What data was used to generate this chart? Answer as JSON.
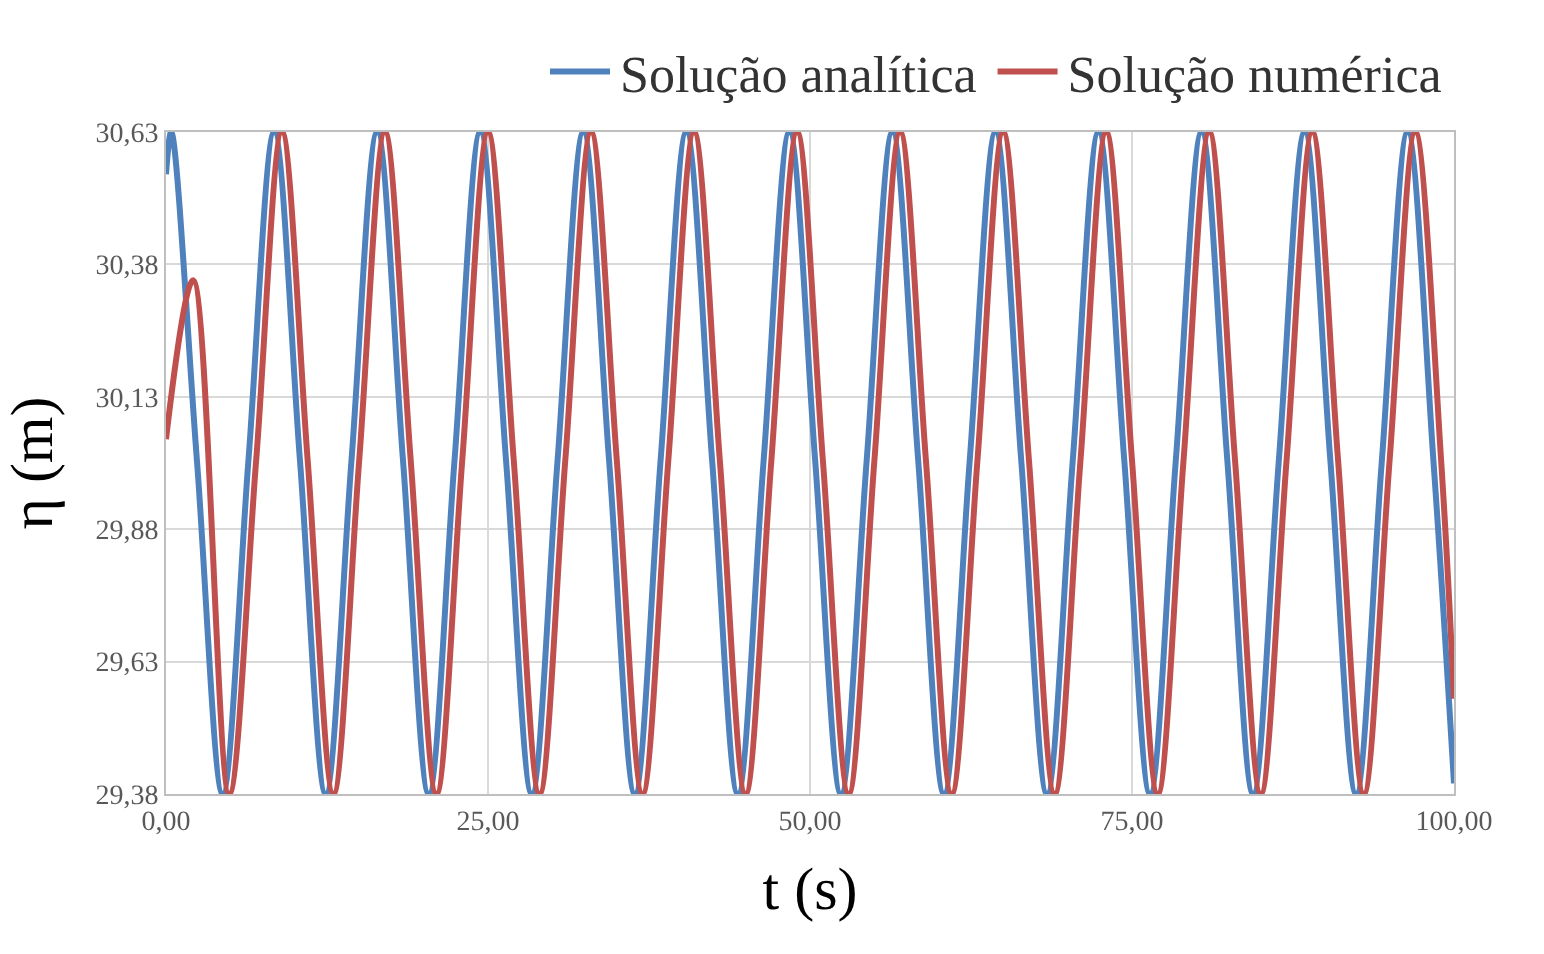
{
  "chart_data": {
    "type": "line",
    "xlabel": "t (s)",
    "ylabel": "η (m)",
    "legend": "top",
    "grid": true,
    "line_style": "solid",
    "xlim": [
      0,
      100
    ],
    "ylim": [
      29.38,
      30.63
    ],
    "xticks": [
      {
        "value": 0,
        "label": "0,00"
      },
      {
        "value": 25,
        "label": "25,00"
      },
      {
        "value": 50,
        "label": "50,00"
      },
      {
        "value": 75,
        "label": "75,00"
      },
      {
        "value": 100,
        "label": "100,00"
      }
    ],
    "yticks": [
      {
        "value": 29.38,
        "label": "29,38"
      },
      {
        "value": 29.63,
        "label": "29,63"
      },
      {
        "value": 29.88,
        "label": "29,88"
      },
      {
        "value": 30.13,
        "label": "30,13"
      },
      {
        "value": 30.38,
        "label": "30,38"
      },
      {
        "value": 30.63,
        "label": "30,63"
      }
    ],
    "series": [
      {
        "name": "Solução analítica",
        "color": "#4f81bd",
        "x": [
          0,
          0.4,
          2.4,
          4.4,
          6.4,
          8.4,
          10.4,
          12.4,
          14.4,
          16.4,
          18.4,
          20.4,
          22.4,
          24.4,
          26.4,
          28.4,
          30.4,
          32.4,
          34.4,
          36.4,
          38.4,
          40.4,
          42.4,
          44.4,
          46.4,
          48.4,
          50.4,
          52.4,
          54.4,
          56.4,
          58.4,
          60.4,
          62.4,
          64.4,
          66.4,
          68.4,
          70.4,
          72.4,
          74.4,
          76.4,
          78.4,
          80.4,
          82.4,
          84.4,
          86.4,
          88.4,
          90.4,
          92.4,
          94.4,
          96.4,
          98.4,
          100
        ],
        "values": [
          30.55,
          30.63,
          30.01,
          29.38,
          30.01,
          30.63,
          30.01,
          29.38,
          30.01,
          30.63,
          30.01,
          29.38,
          30.01,
          30.63,
          30.01,
          29.38,
          30.01,
          30.63,
          30.01,
          29.38,
          30.01,
          30.63,
          30.01,
          29.38,
          30.01,
          30.63,
          30.01,
          29.38,
          30.01,
          30.63,
          30.01,
          29.38,
          30.01,
          30.63,
          30.01,
          29.38,
          30.01,
          30.63,
          30.01,
          29.38,
          30.01,
          30.63,
          30.01,
          29.38,
          30.01,
          30.63,
          30.01,
          29.38,
          30.01,
          30.63,
          30.01,
          29.4
        ]
      },
      {
        "name": "Solução numérica",
        "color": "#c0504d",
        "x": [
          0,
          2.1,
          4.9,
          7,
          9,
          11,
          13,
          15,
          17,
          19,
          21,
          23,
          25,
          27,
          29,
          31,
          33,
          35,
          37,
          39,
          41,
          43,
          45,
          47,
          49,
          51,
          53,
          55,
          57,
          59,
          61,
          63,
          65,
          67,
          69,
          71,
          73,
          75,
          77,
          79,
          81,
          83,
          85,
          87,
          89,
          91,
          93,
          95,
          97,
          99,
          100
        ],
        "values": [
          30.05,
          30.35,
          29.38,
          30.01,
          30.63,
          30.01,
          29.38,
          30.01,
          30.63,
          30.01,
          29.38,
          30.01,
          30.63,
          30.01,
          29.38,
          30.01,
          30.63,
          30.01,
          29.38,
          30.01,
          30.63,
          30.01,
          29.38,
          30.01,
          30.63,
          30.01,
          29.38,
          30.01,
          30.63,
          30.01,
          29.38,
          30.01,
          30.63,
          30.01,
          29.38,
          30.01,
          30.63,
          30.01,
          29.38,
          30.01,
          30.63,
          30.01,
          29.38,
          30.01,
          30.63,
          30.01,
          29.38,
          30.01,
          30.63,
          30.01,
          29.56
        ]
      }
    ]
  }
}
